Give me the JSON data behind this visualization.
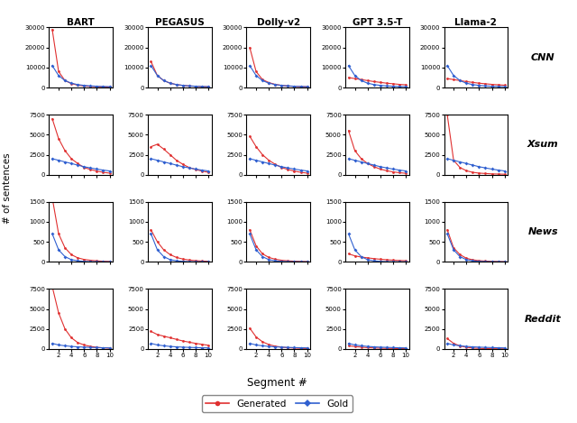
{
  "models": [
    "BART",
    "PEGASUS",
    "Dolly-v2",
    "GPT 3.5-T",
    "Llama-2"
  ],
  "datasets": [
    "CNN",
    "Xsum",
    "News",
    "Reddit"
  ],
  "x": [
    1,
    2,
    3,
    4,
    5,
    6,
    7,
    8,
    9,
    10
  ],
  "generated_color": "#e03030",
  "gold_color": "#3060d0",
  "generated_data": {
    "CNN": {
      "BART": [
        29000,
        8000,
        3500,
        2000,
        1200,
        800,
        600,
        450,
        350,
        280
      ],
      "PEGASUS": [
        13000,
        6000,
        3500,
        2200,
        1500,
        1100,
        800,
        650,
        500,
        400
      ],
      "Dolly-v2": [
        20000,
        8000,
        4000,
        2500,
        1600,
        1100,
        800,
        600,
        500,
        400
      ],
      "GPT 3.5-T": [
        5000,
        4500,
        4000,
        3500,
        3000,
        2600,
        2200,
        1900,
        1600,
        1400
      ],
      "Llama-2": [
        4500,
        4000,
        3500,
        3000,
        2600,
        2200,
        1900,
        1600,
        1400,
        1200
      ]
    },
    "Xsum": {
      "BART": [
        7000,
        4500,
        3000,
        2000,
        1400,
        900,
        650,
        450,
        300,
        200
      ],
      "PEGASUS": [
        3500,
        3800,
        3200,
        2500,
        1800,
        1300,
        900,
        650,
        450,
        300
      ],
      "Dolly-v2": [
        4800,
        3500,
        2500,
        1800,
        1300,
        900,
        650,
        450,
        300,
        200
      ],
      "GPT 3.5-T": [
        5500,
        3000,
        2000,
        1400,
        1000,
        700,
        500,
        350,
        250,
        180
      ],
      "Llama-2": [
        7500,
        1800,
        900,
        500,
        300,
        200,
        150,
        100,
        80,
        60
      ]
    },
    "News": {
      "BART": [
        1600,
        700,
        350,
        180,
        100,
        60,
        40,
        25,
        15,
        10
      ],
      "PEGASUS": [
        800,
        500,
        300,
        180,
        110,
        70,
        45,
        30,
        20,
        14
      ],
      "Dolly-v2": [
        800,
        400,
        200,
        110,
        65,
        40,
        25,
        16,
        10,
        7
      ],
      "GPT 3.5-T": [
        200,
        150,
        120,
        100,
        80,
        65,
        52,
        42,
        34,
        28
      ],
      "Llama-2": [
        800,
        350,
        180,
        90,
        50,
        30,
        19,
        12,
        8,
        5
      ]
    },
    "Reddit": {
      "BART": [
        7800,
        4500,
        2500,
        1400,
        800,
        500,
        320,
        210,
        140,
        100
      ],
      "PEGASUS": [
        2200,
        1800,
        1600,
        1400,
        1200,
        1000,
        850,
        700,
        580,
        460
      ],
      "Dolly-v2": [
        2600,
        1500,
        900,
        550,
        350,
        230,
        160,
        110,
        80,
        60
      ],
      "GPT 3.5-T": [
        400,
        300,
        230,
        170,
        130,
        100,
        78,
        62,
        50,
        40
      ],
      "Llama-2": [
        1300,
        700,
        380,
        210,
        120,
        75,
        48,
        32,
        22,
        16
      ]
    }
  },
  "gold_data": {
    "CNN": {
      "BART": [
        11000,
        6000,
        3500,
        2200,
        1500,
        1100,
        850,
        680,
        560,
        470
      ],
      "PEGASUS": [
        11000,
        6000,
        3500,
        2200,
        1500,
        1100,
        850,
        680,
        560,
        470
      ],
      "Dolly-v2": [
        11000,
        6000,
        3500,
        2200,
        1500,
        1100,
        850,
        680,
        560,
        470
      ],
      "GPT 3.5-T": [
        11000,
        6000,
        3500,
        2200,
        1500,
        1100,
        850,
        680,
        560,
        470
      ],
      "Llama-2": [
        11000,
        6000,
        3500,
        2200,
        1500,
        1100,
        850,
        680,
        560,
        470
      ]
    },
    "Xsum": {
      "BART": [
        2000,
        1800,
        1600,
        1400,
        1200,
        1000,
        850,
        700,
        580,
        470
      ],
      "PEGASUS": [
        2000,
        1800,
        1600,
        1400,
        1200,
        1000,
        850,
        700,
        580,
        470
      ],
      "Dolly-v2": [
        2000,
        1800,
        1600,
        1400,
        1200,
        1000,
        850,
        700,
        580,
        470
      ],
      "GPT 3.5-T": [
        2000,
        1800,
        1600,
        1400,
        1200,
        1000,
        850,
        700,
        580,
        470
      ],
      "Llama-2": [
        2000,
        1800,
        1600,
        1400,
        1200,
        1000,
        850,
        700,
        580,
        470
      ]
    },
    "News": {
      "BART": [
        700,
        300,
        130,
        55,
        25,
        12,
        6,
        3,
        2,
        1
      ],
      "PEGASUS": [
        700,
        300,
        130,
        55,
        25,
        12,
        6,
        3,
        2,
        1
      ],
      "Dolly-v2": [
        700,
        300,
        130,
        55,
        25,
        12,
        6,
        3,
        2,
        1
      ],
      "GPT 3.5-T": [
        700,
        300,
        130,
        55,
        25,
        12,
        6,
        3,
        2,
        1
      ],
      "Llama-2": [
        700,
        300,
        130,
        55,
        25,
        12,
        6,
        3,
        2,
        1
      ]
    },
    "Reddit": {
      "BART": [
        700,
        500,
        400,
        320,
        270,
        230,
        200,
        175,
        155,
        135
      ],
      "PEGASUS": [
        700,
        500,
        400,
        320,
        270,
        230,
        200,
        175,
        155,
        135
      ],
      "Dolly-v2": [
        700,
        500,
        400,
        320,
        270,
        230,
        200,
        175,
        155,
        135
      ],
      "GPT 3.5-T": [
        700,
        500,
        400,
        320,
        270,
        230,
        200,
        175,
        155,
        135
      ],
      "Llama-2": [
        700,
        500,
        400,
        320,
        270,
        230,
        200,
        175,
        155,
        135
      ]
    }
  },
  "ylims": {
    "CNN": [
      0,
      30000
    ],
    "Xsum": [
      0,
      7500
    ],
    "News": [
      0,
      1500
    ],
    "Reddit": [
      0,
      7500
    ]
  },
  "yticks": {
    "CNN": [
      0,
      10000,
      20000,
      30000
    ],
    "Xsum": [
      0,
      2500,
      5000,
      7500
    ],
    "News": [
      0,
      500,
      1000,
      1500
    ],
    "Reddit": [
      0,
      2500,
      5000,
      7500
    ]
  }
}
